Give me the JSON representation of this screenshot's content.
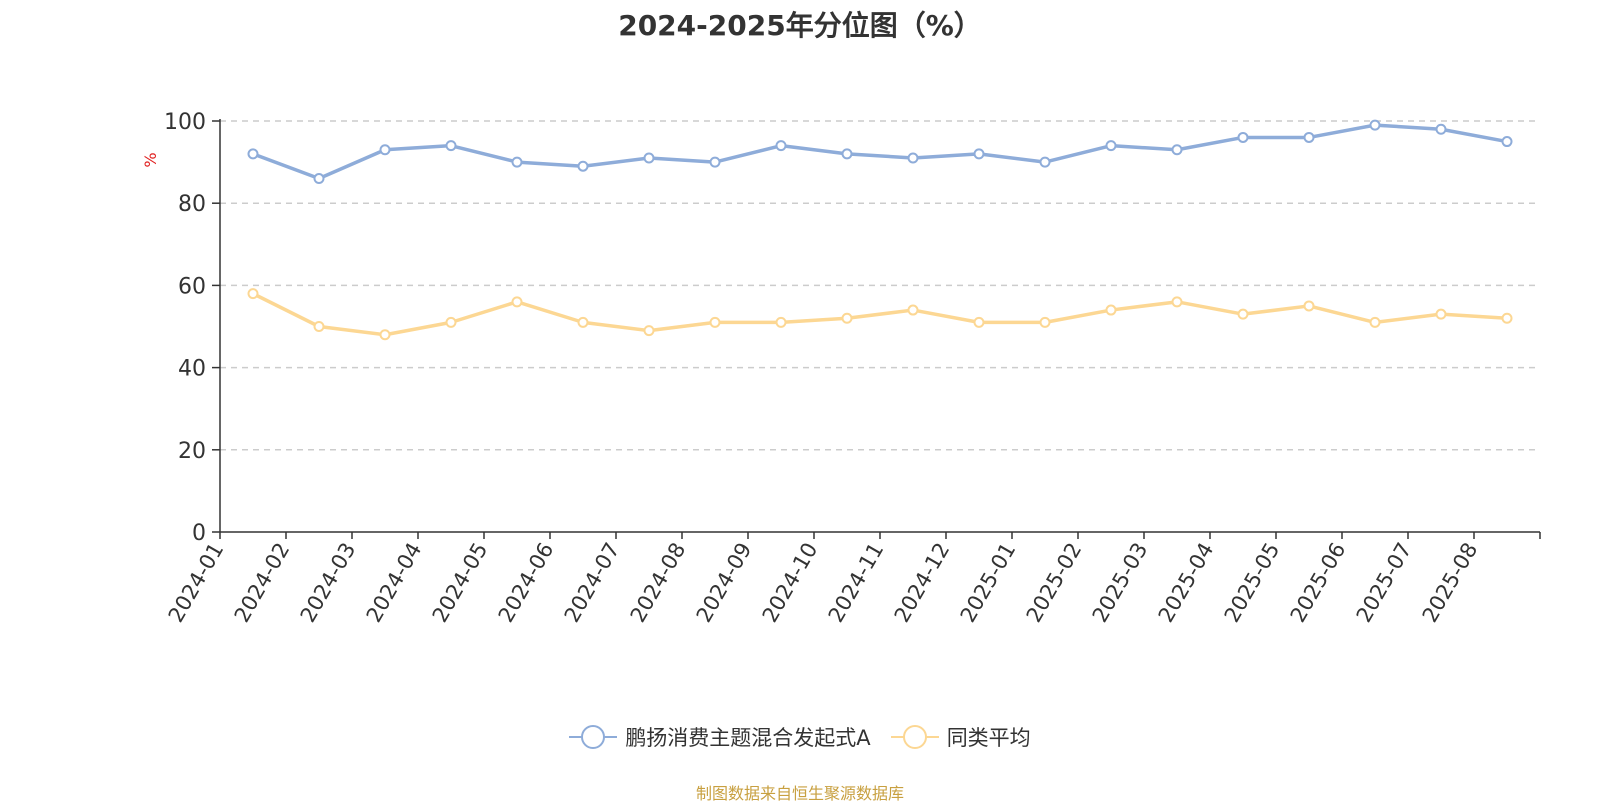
{
  "chart_data": {
    "type": "line",
    "title": "2024-2025年分位图（%）",
    "ylabel": "%",
    "ylim": [
      0,
      100
    ],
    "yticks": [
      0,
      20,
      40,
      60,
      80,
      100
    ],
    "grid": true,
    "legend_position": "bottom",
    "categories": [
      "2024-01",
      "2024-02",
      "2024-03",
      "2024-04",
      "2024-05",
      "2024-06",
      "2024-07",
      "2024-08",
      "2024-09",
      "2024-10",
      "2024-11",
      "2024-12",
      "2025-01",
      "2025-02",
      "2025-03",
      "2025-04",
      "2025-05",
      "2025-06",
      "2025-07",
      "2025-08"
    ],
    "series": [
      {
        "name": "鹏扬消费主题混合发起式A",
        "color": "#8eacd9",
        "values": [
          92,
          86,
          93,
          94,
          90,
          89,
          91,
          90,
          94,
          92,
          91,
          92,
          90,
          94,
          93,
          96,
          96,
          99,
          98,
          95
        ]
      },
      {
        "name": "同类平均",
        "color": "#fcd793",
        "values": [
          58,
          50,
          48,
          51,
          56,
          51,
          49,
          51,
          51,
          52,
          54,
          51,
          51,
          54,
          56,
          53,
          55,
          51,
          53,
          52
        ]
      }
    ]
  },
  "source_note": "制图数据来自恒生聚源数据库",
  "colors": {
    "title": "#333333",
    "axis": "#333333",
    "grid": "#cccccc",
    "ylabel": "#e02020",
    "source_note": "#c8a040"
  }
}
